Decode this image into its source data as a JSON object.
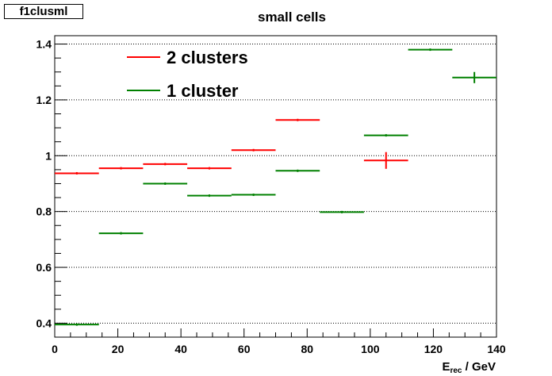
{
  "histogram_name": "f1clusml",
  "chart_data": {
    "type": "scatter",
    "title": "small cells",
    "xlabel": {
      "main": "E",
      "sub": "rec",
      "rest": " / GeV"
    },
    "ylabel": "",
    "xlim": [
      0,
      140
    ],
    "ylim": [
      0.35,
      1.43
    ],
    "x_ticks": [
      0,
      20,
      40,
      60,
      80,
      100,
      120,
      140
    ],
    "y_ticks": [
      0.4,
      0.6,
      0.8,
      1,
      1.2,
      1.4
    ],
    "x_tick_labels": [
      "0",
      "20",
      "40",
      "60",
      "80",
      "100",
      "120",
      "140"
    ],
    "y_tick_labels": [
      "0.4",
      "0.6",
      "0.8",
      "1",
      "1.2",
      "1.4"
    ],
    "grid": "horizontal dotted",
    "legend_position": "top-left",
    "series": [
      {
        "name": "2 clusters",
        "color": "#ff0000",
        "points": [
          {
            "x": 7,
            "xerr": 7,
            "y": 0.937,
            "yerr": 0.0
          },
          {
            "x": 21,
            "xerr": 7,
            "y": 0.955,
            "yerr": 0.0
          },
          {
            "x": 35,
            "xerr": 7,
            "y": 0.97,
            "yerr": 0.0
          },
          {
            "x": 49,
            "xerr": 7,
            "y": 0.955,
            "yerr": 0.0
          },
          {
            "x": 63,
            "xerr": 7,
            "y": 1.02,
            "yerr": 0.0
          },
          {
            "x": 77,
            "xerr": 7,
            "y": 1.128,
            "yerr": 0.004
          },
          {
            "x": 105,
            "xerr": 7,
            "y": 0.983,
            "yerr": 0.03
          }
        ]
      },
      {
        "name": "1 cluster",
        "color": "#008000",
        "points": [
          {
            "x": 7,
            "xerr": 7,
            "y": 0.395,
            "yerr": 0.0
          },
          {
            "x": 21,
            "xerr": 7,
            "y": 0.722,
            "yerr": 0.0
          },
          {
            "x": 35,
            "xerr": 7,
            "y": 0.9,
            "yerr": 0.0
          },
          {
            "x": 49,
            "xerr": 7,
            "y": 0.857,
            "yerr": 0.0
          },
          {
            "x": 63,
            "xerr": 7,
            "y": 0.86,
            "yerr": 0.0
          },
          {
            "x": 77,
            "xerr": 7,
            "y": 0.946,
            "yerr": 0.0
          },
          {
            "x": 91,
            "xerr": 7,
            "y": 0.798,
            "yerr": 0.0
          },
          {
            "x": 105,
            "xerr": 7,
            "y": 1.073,
            "yerr": 0.0
          },
          {
            "x": 119,
            "xerr": 7,
            "y": 1.38,
            "yerr": 0.004
          },
          {
            "x": 133,
            "xerr": 7,
            "y": 1.28,
            "yerr": 0.02
          }
        ]
      }
    ]
  }
}
